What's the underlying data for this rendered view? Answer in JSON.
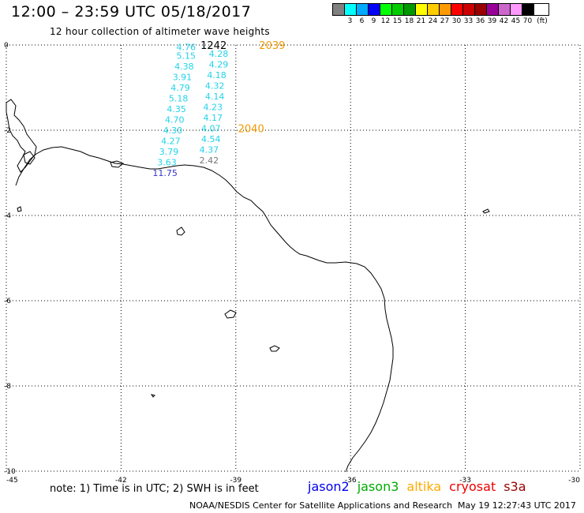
{
  "header": {
    "title": "12:00 – 23:59 UTC 05/18/2017",
    "subtitle": "12 hour collection of altimeter wave heights"
  },
  "legend": {
    "colors": [
      "#808080",
      "#00ffff",
      "#00aaff",
      "#0000ff",
      "#00ff00",
      "#00cc00",
      "#009900",
      "#ffff00",
      "#ffcc00",
      "#ff9900",
      "#ff0000",
      "#cc0000",
      "#990000",
      "#990099",
      "#cc66cc",
      "#ff99ff",
      "#000000"
    ],
    "labels": [
      "3",
      "6",
      "9",
      "12",
      "15",
      "18",
      "21",
      "24",
      "27",
      "30",
      "33",
      "36",
      "39",
      "42",
      "45",
      "70"
    ],
    "unit": "(ft)"
  },
  "map": {
    "x_ticks": [
      {
        "lon": -45,
        "label": "-45"
      },
      {
        "lon": -42,
        "label": "-42"
      },
      {
        "lon": -39,
        "label": "-39"
      },
      {
        "lon": -36,
        "label": "-36"
      },
      {
        "lon": -33,
        "label": "-33"
      },
      {
        "lon": -30,
        "label": "-30"
      }
    ],
    "y_ticks": [
      {
        "lat": 0,
        "label": "0"
      },
      {
        "lat": -2,
        "label": "-2"
      },
      {
        "lat": -4,
        "label": "-4"
      },
      {
        "lat": -6,
        "label": "-6"
      },
      {
        "lat": -8,
        "label": "-8"
      },
      {
        "lat": -10,
        "label": "-10"
      }
    ],
    "lon_range": [
      -45,
      -30
    ],
    "lat_range": [
      -10,
      0
    ],
    "grid": "dotted",
    "observations": [
      {
        "lon": -40.3,
        "lat": -0.05,
        "value": "4.76",
        "sat": "jason3",
        "color": "#22d3e8"
      },
      {
        "lon": -40.3,
        "lat": -0.25,
        "value": "5.15",
        "sat": "jason3",
        "color": "#22d3e8"
      },
      {
        "lon": -40.35,
        "lat": -0.5,
        "value": "4.38",
        "sat": "jason3",
        "color": "#22d3e8"
      },
      {
        "lon": -40.4,
        "lat": -0.75,
        "value": "3.91",
        "sat": "jason3",
        "color": "#22d3e8"
      },
      {
        "lon": -40.45,
        "lat": -1.0,
        "value": "4.79",
        "sat": "jason3",
        "color": "#22d3e8"
      },
      {
        "lon": -40.5,
        "lat": -1.25,
        "value": "5.18",
        "sat": "jason3",
        "color": "#22d3e8"
      },
      {
        "lon": -40.55,
        "lat": -1.5,
        "value": "4.35",
        "sat": "jason3",
        "color": "#22d3e8"
      },
      {
        "lon": -40.6,
        "lat": -1.75,
        "value": "4.70",
        "sat": "jason3",
        "color": "#22d3e8"
      },
      {
        "lon": -40.65,
        "lat": -2.0,
        "value": "4.30",
        "sat": "jason3",
        "color": "#22d3e8"
      },
      {
        "lon": -40.7,
        "lat": -2.25,
        "value": "4.27",
        "sat": "jason3",
        "color": "#22d3e8"
      },
      {
        "lon": -40.75,
        "lat": -2.5,
        "value": "3.79",
        "sat": "jason3",
        "color": "#22d3e8"
      },
      {
        "lon": -40.8,
        "lat": -2.75,
        "value": "3.63",
        "sat": "jason3",
        "color": "#22d3e8"
      },
      {
        "lon": -40.85,
        "lat": -3.0,
        "value": "11.75",
        "sat": "jason2",
        "color": "#3333cc"
      },
      {
        "lon": -39.45,
        "lat": -0.2,
        "value": "4.28",
        "sat": "jason3",
        "color": "#22d3e8"
      },
      {
        "lon": -39.45,
        "lat": -0.45,
        "value": "4.29",
        "sat": "jason3",
        "color": "#22d3e8"
      },
      {
        "lon": -39.5,
        "lat": -0.7,
        "value": "4.18",
        "sat": "jason3",
        "color": "#22d3e8"
      },
      {
        "lon": -39.55,
        "lat": -0.95,
        "value": "4.32",
        "sat": "jason3",
        "color": "#22d3e8"
      },
      {
        "lon": -39.55,
        "lat": -1.2,
        "value": "4.14",
        "sat": "jason3",
        "color": "#22d3e8"
      },
      {
        "lon": -39.6,
        "lat": -1.45,
        "value": "4.23",
        "sat": "jason3",
        "color": "#22d3e8"
      },
      {
        "lon": -39.6,
        "lat": -1.7,
        "value": "4.17",
        "sat": "jason3",
        "color": "#22d3e8"
      },
      {
        "lon": -39.65,
        "lat": -1.95,
        "value": "4.07",
        "sat": "jason3",
        "color": "#22d3e8"
      },
      {
        "lon": -39.65,
        "lat": -2.2,
        "value": "4.54",
        "sat": "jason3",
        "color": "#22d3e8"
      },
      {
        "lon": -39.7,
        "lat": -2.45,
        "value": "4.37",
        "sat": "jason3",
        "color": "#22d3e8"
      },
      {
        "lon": -39.7,
        "lat": -2.7,
        "value": "2.42",
        "sat": "gray",
        "color": "#777777"
      }
    ],
    "track_labels": [
      {
        "lon": -39.58,
        "lat": 0.0,
        "text": "1242",
        "color": "#000000"
      },
      {
        "lon": -38.05,
        "lat": 0.0,
        "text": "2039",
        "color": "#ee9900"
      },
      {
        "lon": -38.6,
        "lat": -1.95,
        "text": "2040",
        "color": "#ee9900"
      }
    ]
  },
  "footer": {
    "note": "note: 1) Time is in UTC; 2) SWH is in feet",
    "satellites": [
      {
        "name": "jason2",
        "color": "#0000ee"
      },
      {
        "name": "jason3",
        "color": "#00aa00"
      },
      {
        "name": "altika",
        "color": "#ffaa00"
      },
      {
        "name": "cryosat",
        "color": "#ee0000"
      },
      {
        "name": "s3a",
        "color": "#990000"
      }
    ],
    "credit": "NOAA/NESDIS Center for Satellite Applications and Research",
    "timestamp": "May 19 12:27:43 UTC 2017"
  }
}
